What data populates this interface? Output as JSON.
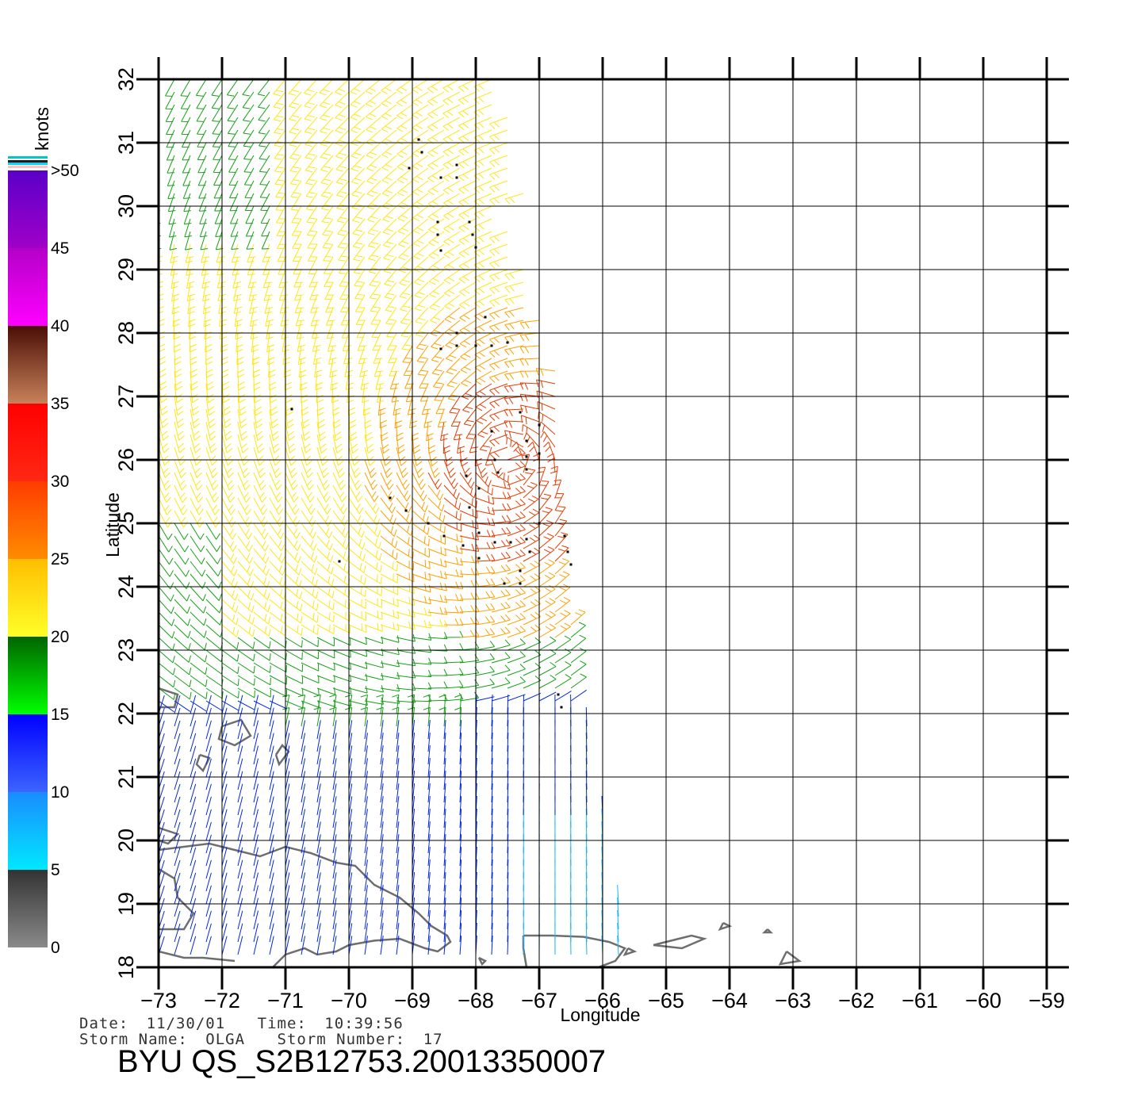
{
  "map": {
    "x_axis_label": "Longitude",
    "y_axis_label": "Latitude",
    "lon_ticks": [
      "−73",
      "−72",
      "−71",
      "−70",
      "−69",
      "−68",
      "−67",
      "−66",
      "−65",
      "−64",
      "−63",
      "−62",
      "−61",
      "−60",
      "−59"
    ],
    "lat_ticks": [
      "18",
      "19",
      "20",
      "21",
      "22",
      "23",
      "24",
      "25",
      "26",
      "27",
      "28",
      "29",
      "30",
      "31",
      "32"
    ],
    "lon_range": [
      -73,
      -59
    ],
    "lat_range": [
      18,
      32
    ],
    "grid": true,
    "coastline_color": "#6e6e6e"
  },
  "colorbar": {
    "units": "knots",
    "labels": [
      "0",
      "5",
      "10",
      "15",
      "20",
      "25",
      "30",
      "35",
      "40",
      "45",
      ">50"
    ],
    "bands": [
      {
        "from": 0,
        "to": 5,
        "top": "#333333",
        "bottom": "#8a8a8a"
      },
      {
        "from": 5,
        "to": 10,
        "top": "#1a8cff",
        "bottom": "#00e8ff"
      },
      {
        "from": 10,
        "to": 15,
        "top": "#0000ff",
        "bottom": "#3c64ff"
      },
      {
        "from": 15,
        "to": 20,
        "top": "#006400",
        "bottom": "#00ff00"
      },
      {
        "from": 20,
        "to": 25,
        "top": "#ffbe00",
        "bottom": "#ffff28"
      },
      {
        "from": 25,
        "to": 30,
        "top": "#ff3c00",
        "bottom": "#ff8c00"
      },
      {
        "from": 30,
        "to": 35,
        "top": "#ff0000",
        "bottom": "#ff2814"
      },
      {
        "from": 35,
        "to": 40,
        "top": "#4a0e05",
        "bottom": "#c8825a"
      },
      {
        "from": 40,
        "to": 45,
        "top": "#b400c8",
        "bottom": "#ff00ff"
      },
      {
        "from": 45,
        "to": 50,
        "top": "#5a00c8",
        "bottom": "#a000c8"
      }
    ]
  },
  "wind_colors": {
    "blue": "#0028dc",
    "cyan": "#14b4ff",
    "green": "#14a014",
    "yellow": "#ffe614",
    "orange": "#ffa000",
    "red": "#e63c00"
  },
  "footer": {
    "date_label": "Date:",
    "date_value": "11/30/01",
    "time_label": "Time:",
    "time_value": "10:39:56",
    "storm_name_label": "Storm Name:",
    "storm_name_value": "OLGA",
    "storm_number_label": "Storm Number:",
    "storm_number_value": "17",
    "product_id": "BYU QS_S2B12753.20013350007"
  }
}
